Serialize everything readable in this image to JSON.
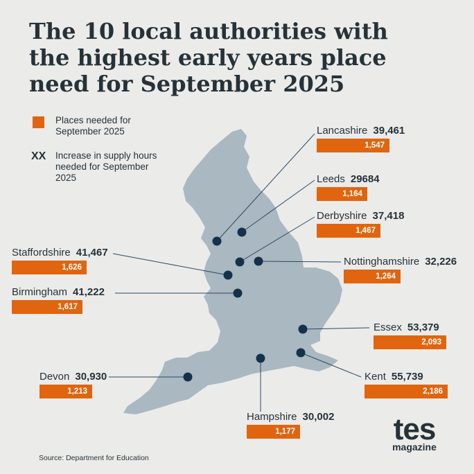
{
  "title": "The 10 local authorities with the highest early years place need for September 2025",
  "legend": {
    "places_label": "Places needed for September 2025",
    "supply_marker": "XX",
    "supply_label": "Increase in supply hours needed for September 2025"
  },
  "colors": {
    "accent": "#e0650e",
    "map_fill": "#a9b8c1",
    "dot": "#14324a",
    "background": "#ebebea"
  },
  "authorities": [
    {
      "name": "Lancashire",
      "hours": "39,461",
      "places": "1,547"
    },
    {
      "name": "Leeds",
      "hours": "29684",
      "places": "1,164"
    },
    {
      "name": "Derbyshire",
      "hours": "37,418",
      "places": "1,467"
    },
    {
      "name": "Nottinghamshire",
      "hours": "32,226",
      "places": "1,264"
    },
    {
      "name": "Staffordshire",
      "hours": "41,467",
      "places": "1,626"
    },
    {
      "name": "Birmingham",
      "hours": "41,222",
      "places": "1,617"
    },
    {
      "name": "Essex",
      "hours": "53,379",
      "places": "2,093"
    },
    {
      "name": "Devon",
      "hours": "30,930",
      "places": "1,213"
    },
    {
      "name": "Kent",
      "hours": "55,739",
      "places": "2,186"
    },
    {
      "name": "Hampshire",
      "hours": "30,002",
      "places": "1,177"
    }
  ],
  "source": "Source: Department for Education",
  "logo": {
    "main": "tes",
    "sub": "magazine"
  }
}
